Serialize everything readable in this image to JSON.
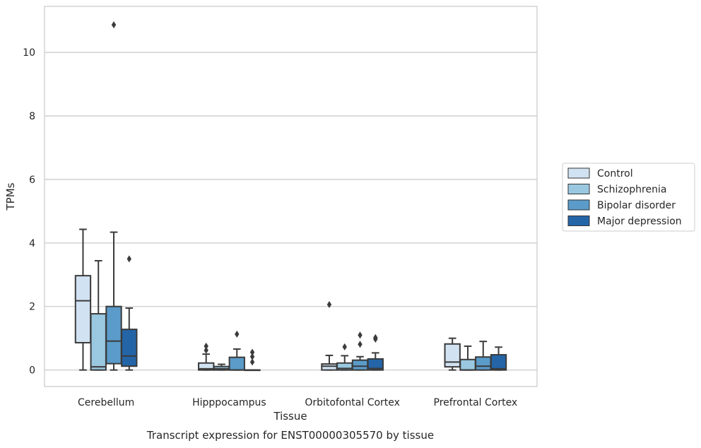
{
  "chart_data": {
    "type": "box",
    "title": "Transcript expression for ENST00000305570 by tissue",
    "xlabel": "Tissue",
    "ylabel": "TPMs",
    "ylim": [
      -0.52,
      11.45
    ],
    "yticks": [
      0,
      2,
      4,
      6,
      8,
      10
    ],
    "grid": "horizontal",
    "legend_placement": "right",
    "categories": [
      "Cerebellum",
      "Hipppocampus",
      "Orbitofontal Cortex",
      "Prefrontal Cortex"
    ],
    "series": [
      {
        "name": "Control",
        "color": "#d1e2f2",
        "boxes": [
          {
            "whislo": 0,
            "q1": 0.86,
            "med": 2.18,
            "q3": 2.97,
            "whishi": 4.43,
            "fliers": []
          },
          {
            "whislo": 0,
            "q1": 0.0,
            "med": 0.04,
            "q3": 0.22,
            "whishi": 0.5,
            "fliers": [
              0.62,
              0.75
            ]
          },
          {
            "whislo": 0,
            "q1": 0.0,
            "med": 0.12,
            "q3": 0.19,
            "whishi": 0.46,
            "fliers": [
              2.06
            ]
          },
          {
            "whislo": 0,
            "q1": 0.1,
            "med": 0.25,
            "q3": 0.82,
            "whishi": 1.0,
            "fliers": []
          }
        ]
      },
      {
        "name": "Schizophrenia",
        "color": "#9ac8e0",
        "boxes": [
          {
            "whislo": 0,
            "q1": 0.0,
            "med": 0.1,
            "q3": 1.77,
            "whishi": 3.44,
            "fliers": []
          },
          {
            "whislo": 0,
            "q1": 0.0,
            "med": 0.04,
            "q3": 0.11,
            "whishi": 0.18,
            "fliers": []
          },
          {
            "whislo": 0,
            "q1": 0.0,
            "med": 0.05,
            "q3": 0.22,
            "whishi": 0.45,
            "fliers": [
              0.73
            ]
          },
          {
            "whislo": 0,
            "q1": 0.0,
            "med": 0.0,
            "q3": 0.33,
            "whishi": 0.75,
            "fliers": []
          }
        ]
      },
      {
        "name": "Bipolar disorder",
        "color": "#5a9bc9",
        "boxes": [
          {
            "whislo": 0,
            "q1": 0.2,
            "med": 0.91,
            "q3": 2.0,
            "whishi": 4.34,
            "fliers": [
              10.87
            ]
          },
          {
            "whislo": 0,
            "q1": 0.0,
            "med": 0.0,
            "q3": 0.4,
            "whishi": 0.66,
            "fliers": [
              1.13
            ]
          },
          {
            "whislo": 0,
            "q1": 0.0,
            "med": 0.12,
            "q3": 0.31,
            "whishi": 0.42,
            "fliers": [
              0.81,
              1.1
            ]
          },
          {
            "whislo": 0,
            "q1": 0.0,
            "med": 0.12,
            "q3": 0.41,
            "whishi": 0.9,
            "fliers": []
          }
        ]
      },
      {
        "name": "Major depression",
        "color": "#2465a8",
        "boxes": [
          {
            "whislo": 0,
            "q1": 0.12,
            "med": 0.44,
            "q3": 1.28,
            "whishi": 1.95,
            "fliers": [
              3.5
            ]
          },
          {
            "whislo": 0,
            "q1": 0.0,
            "med": 0.0,
            "q3": 0.0,
            "whishi": 0.0,
            "fliers": [
              0.25,
              0.42,
              0.56
            ]
          },
          {
            "whislo": 0,
            "q1": 0.0,
            "med": 0.05,
            "q3": 0.35,
            "whishi": 0.54,
            "fliers": [
              0.97,
              1.02
            ]
          },
          {
            "whislo": 0,
            "q1": 0.0,
            "med": 0.04,
            "q3": 0.48,
            "whishi": 0.72,
            "fliers": []
          }
        ]
      }
    ]
  }
}
